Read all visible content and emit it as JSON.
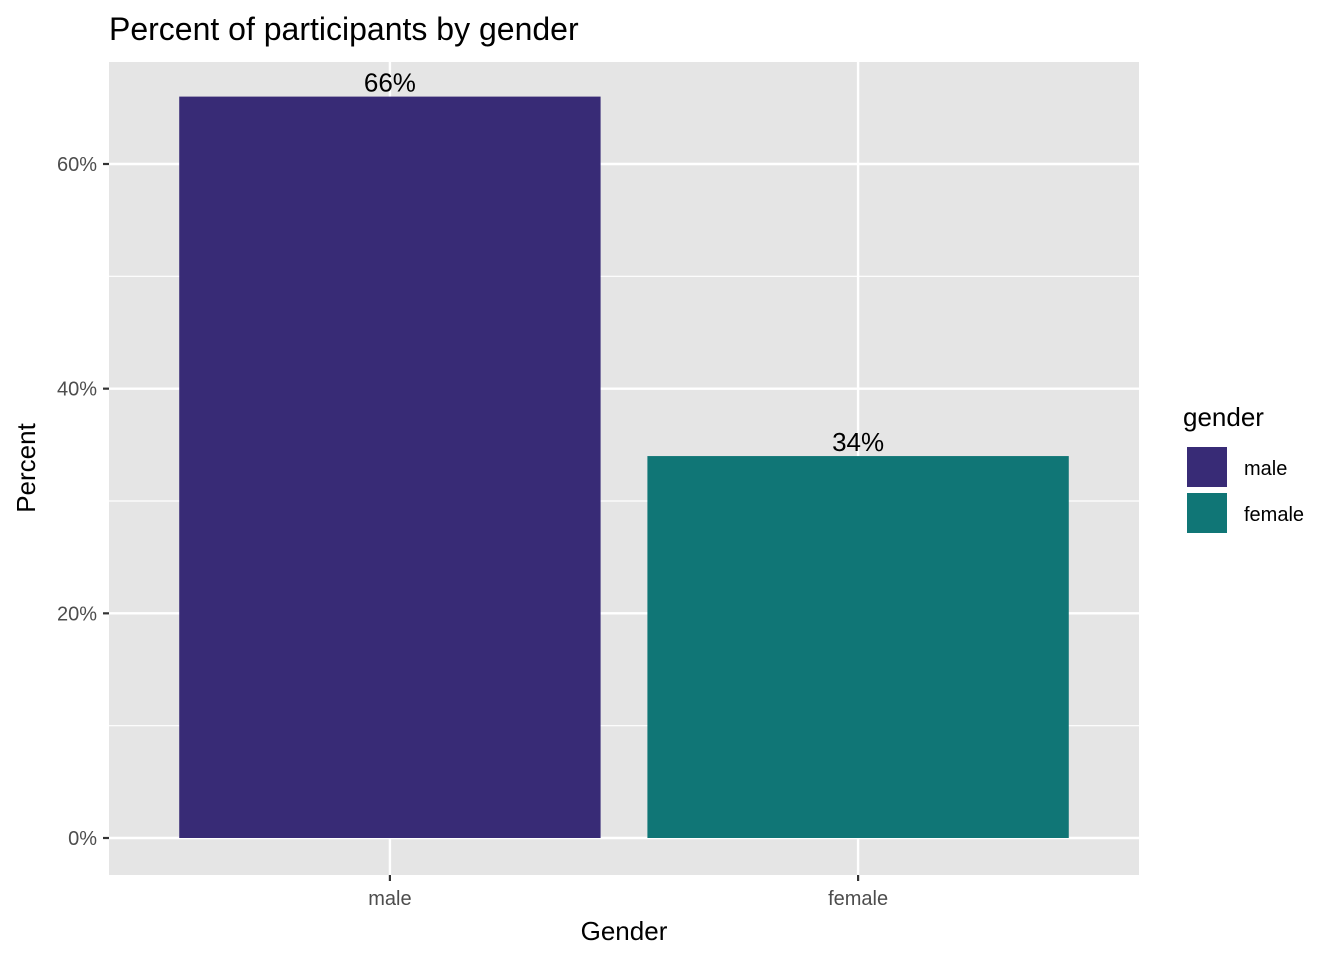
{
  "chart_data": {
    "type": "bar",
    "title": "Percent of participants by gender",
    "xlabel": "Gender",
    "ylabel": "Percent",
    "categories": [
      "male",
      "female"
    ],
    "values": [
      66,
      34
    ],
    "data_labels": [
      "66%",
      "34%"
    ],
    "ylim": [
      0,
      68.9
    ],
    "y_ticks": [
      0,
      20,
      40,
      60
    ],
    "y_tick_labels": [
      "0%",
      "20%",
      "40%",
      "60%"
    ],
    "y_minor_ticks": [
      10,
      30,
      50
    ],
    "grid": true,
    "colors": [
      "#382b76",
      "#107676"
    ],
    "panel_background": "#e5e5e5",
    "legend": {
      "title": "gender",
      "position": "right",
      "entries": [
        "male",
        "female"
      ]
    }
  }
}
